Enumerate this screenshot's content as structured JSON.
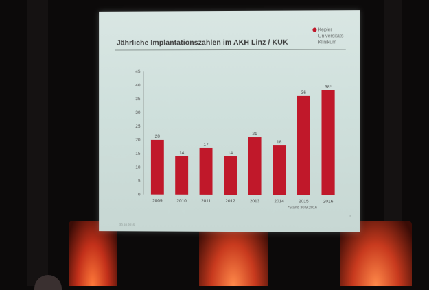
{
  "slide": {
    "title": "Jährliche Implantationszahlen im AKH Linz / KUK",
    "logo_lines": [
      "Kepler",
      "Universitäts",
      "Klinikum"
    ],
    "footnote": "*Stand 30.9.2016",
    "date": "30.10.2016",
    "page_number": "2"
  },
  "colors": {
    "bar": "#c0182a",
    "slide_bg": "#d4e3df",
    "text": "#3a3a3a"
  },
  "chart_data": {
    "type": "bar",
    "title": "Jährliche Implantationszahlen im AKH Linz / KUK",
    "categories": [
      "2009",
      "2010",
      "2011",
      "2012",
      "2013",
      "2014",
      "2015",
      "2016"
    ],
    "values": [
      20,
      14,
      17,
      14,
      21,
      18,
      36,
      38
    ],
    "data_labels": [
      "20",
      "14",
      "17",
      "14",
      "21",
      "18",
      "36",
      "38*"
    ],
    "ylim": [
      0,
      45
    ],
    "yticks": [
      0,
      5,
      10,
      15,
      20,
      25,
      30,
      35,
      40,
      45
    ],
    "grid": false,
    "xlabel": "",
    "ylabel": ""
  }
}
